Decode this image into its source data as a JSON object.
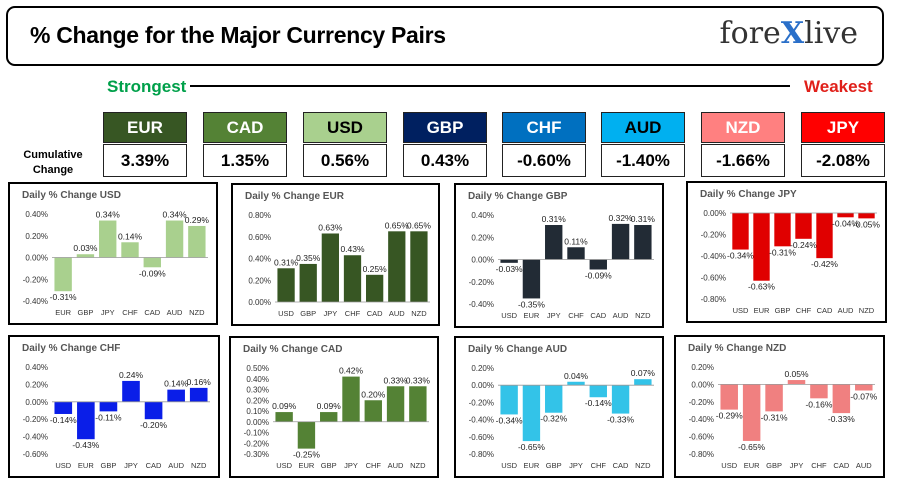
{
  "header": {
    "title": "% Change for the Major Currency Pairs",
    "logo_left": "fore",
    "logo_x": "X",
    "logo_right": "live"
  },
  "strength": {
    "strongest_label": "Strongest",
    "weakest_label": "Weakest",
    "row_label": "Cumulative Change"
  },
  "cumulative": [
    {
      "code": "EUR",
      "value": "3.39%",
      "bg": "#375623",
      "fg": "#ffffff"
    },
    {
      "code": "CAD",
      "value": "1.35%",
      "bg": "#548235",
      "fg": "#ffffff"
    },
    {
      "code": "USD",
      "value": "0.56%",
      "bg": "#a9d08e",
      "fg": "#000000"
    },
    {
      "code": "GBP",
      "value": "0.43%",
      "bg": "#002060",
      "fg": "#ffffff"
    },
    {
      "code": "CHF",
      "value": "-0.60%",
      "bg": "#0070c0",
      "fg": "#ffffff"
    },
    {
      "code": "AUD",
      "value": "-1.40%",
      "bg": "#00b0f0",
      "fg": "#000000"
    },
    {
      "code": "NZD",
      "value": "-1.66%",
      "bg": "#ff8080",
      "fg": "#ffffff"
    },
    {
      "code": "JPY",
      "value": "-2.08%",
      "bg": "#ff0000",
      "fg": "#ffffff"
    }
  ],
  "chart_data": [
    {
      "type": "bar",
      "title": "Daily % Change USD",
      "categories": [
        "EUR",
        "GBP",
        "JPY",
        "CHF",
        "CAD",
        "AUD",
        "NZD"
      ],
      "values": [
        -0.31,
        0.03,
        0.34,
        0.14,
        -0.09,
        0.34,
        0.29
      ],
      "labels": [
        "-0.31%",
        "0.03%",
        "0.34%",
        "0.14%",
        "-0.09%",
        "0.34%",
        "0.29%"
      ],
      "yticks": [
        0.4,
        0.2,
        0,
        -0.2,
        -0.4
      ],
      "ytick_labels": [
        "0.40%",
        "0.20%",
        "0.00%",
        "-0.20%",
        "-0.40%"
      ],
      "ylim": [
        -0.4,
        0.4
      ],
      "color": "#a9d08e"
    },
    {
      "type": "bar",
      "title": "Daily % Change EUR",
      "categories": [
        "USD",
        "GBP",
        "JPY",
        "CHF",
        "CAD",
        "AUD",
        "NZD"
      ],
      "values": [
        0.31,
        0.35,
        0.63,
        0.43,
        0.25,
        0.65,
        0.65
      ],
      "labels": [
        "0.31%",
        "0.35%",
        "0.63%",
        "0.43%",
        "0.25%",
        "0.65%",
        "0.65%"
      ],
      "yticks": [
        0.8,
        0.6,
        0.4,
        0.2,
        0
      ],
      "ytick_labels": [
        "0.80%",
        "0.60%",
        "0.40%",
        "0.20%",
        "0.00%"
      ],
      "ylim": [
        0,
        0.8
      ],
      "color": "#375623"
    },
    {
      "type": "bar",
      "title": "Daily % Change GBP",
      "categories": [
        "USD",
        "EUR",
        "JPY",
        "CHF",
        "CAD",
        "AUD",
        "NZD"
      ],
      "values": [
        -0.03,
        -0.35,
        0.31,
        0.11,
        -0.09,
        0.32,
        0.31
      ],
      "labels": [
        "-0.03%",
        "-0.35%",
        "0.31%",
        "0.11%",
        "-0.09%",
        "0.32%",
        "0.31%"
      ],
      "yticks": [
        0.4,
        0.2,
        0,
        -0.2,
        -0.4
      ],
      "ytick_labels": [
        "0.40%",
        "0.20%",
        "0.00%",
        "-0.20%",
        "-0.40%"
      ],
      "ylim": [
        -0.4,
        0.4
      ],
      "color": "#222b35"
    },
    {
      "type": "bar",
      "title": "Daily % Change JPY",
      "categories": [
        "USD",
        "EUR",
        "GBP",
        "CHF",
        "CAD",
        "AUD",
        "NZD"
      ],
      "values": [
        -0.34,
        -0.63,
        -0.31,
        -0.24,
        -0.42,
        -0.04,
        -0.05
      ],
      "labels": [
        "-0.34%",
        "-0.63%",
        "-0.31%",
        "-0.24%",
        "-0.42%",
        "-0.04%",
        "-0.05%"
      ],
      "yticks": [
        0,
        -0.2,
        -0.4,
        -0.6,
        -0.8
      ],
      "ytick_labels": [
        "0.00%",
        "-0.20%",
        "-0.40%",
        "-0.60%",
        "-0.80%"
      ],
      "ylim": [
        -0.8,
        0
      ],
      "color": "#e00000"
    },
    {
      "type": "bar",
      "title": "Daily % Change CHF",
      "categories": [
        "USD",
        "EUR",
        "GBP",
        "JPY",
        "CAD",
        "AUD",
        "NZD"
      ],
      "values": [
        -0.14,
        -0.43,
        -0.11,
        0.24,
        -0.2,
        0.14,
        0.16
      ],
      "labels": [
        "-0.14%",
        "-0.43%",
        "-0.11%",
        "0.24%",
        "-0.20%",
        "0.14%",
        "0.16%"
      ],
      "yticks": [
        0.4,
        0.2,
        0,
        -0.2,
        -0.4,
        -0.6
      ],
      "ytick_labels": [
        "0.40%",
        "0.20%",
        "0.00%",
        "-0.20%",
        "-0.40%",
        "-0.60%"
      ],
      "ylim": [
        -0.6,
        0.4
      ],
      "color": "#0a1ee8"
    },
    {
      "type": "bar",
      "title": "Daily % Change CAD",
      "categories": [
        "USD",
        "EUR",
        "GBP",
        "JPY",
        "CHF",
        "AUD",
        "NZD"
      ],
      "values": [
        0.09,
        -0.25,
        0.09,
        0.42,
        0.2,
        0.33,
        0.33
      ],
      "labels": [
        "0.09%",
        "-0.25%",
        "0.09%",
        "0.42%",
        "0.20%",
        "0.33%",
        "0.33%"
      ],
      "yticks": [
        0.5,
        0.4,
        0.3,
        0.2,
        0.1,
        0,
        -0.1,
        -0.2,
        -0.3
      ],
      "ytick_labels": [
        "0.50%",
        "0.40%",
        "0.30%",
        "0.20%",
        "0.10%",
        "0.00%",
        "-0.10%",
        "-0.20%",
        "-0.30%"
      ],
      "ylim": [
        -0.3,
        0.5
      ],
      "color": "#548235"
    },
    {
      "type": "bar",
      "title": "Daily % Change AUD",
      "categories": [
        "USD",
        "EUR",
        "GBP",
        "JPY",
        "CHF",
        "CAD",
        "NZD"
      ],
      "values": [
        -0.34,
        -0.65,
        -0.32,
        0.04,
        -0.14,
        -0.33,
        0.07
      ],
      "labels": [
        "-0.34%",
        "-0.65%",
        "-0.32%",
        "0.04%",
        "-0.14%",
        "-0.33%",
        "0.07%"
      ],
      "yticks": [
        0.2,
        0,
        -0.2,
        -0.4,
        -0.6,
        -0.8
      ],
      "ytick_labels": [
        "0.20%",
        "0.00%",
        "-0.20%",
        "-0.40%",
        "-0.60%",
        "-0.80%"
      ],
      "ylim": [
        -0.8,
        0.2
      ],
      "color": "#33c3e8"
    },
    {
      "type": "bar",
      "title": "Daily % Change NZD",
      "categories": [
        "USD",
        "EUR",
        "GBP",
        "JPY",
        "CHF",
        "CAD",
        "AUD"
      ],
      "values": [
        -0.29,
        -0.65,
        -0.31,
        0.05,
        -0.16,
        -0.33,
        -0.07
      ],
      "labels": [
        "-0.29%",
        "-0.65%",
        "-0.31%",
        "0.05%",
        "-0.16%",
        "-0.33%",
        "-0.07%"
      ],
      "yticks": [
        0.2,
        0,
        -0.2,
        -0.4,
        -0.6,
        -0.8
      ],
      "ytick_labels": [
        "0.20%",
        "0.00%",
        "-0.20%",
        "-0.40%",
        "-0.60%",
        "-0.80%"
      ],
      "ylim": [
        -0.8,
        0.2
      ],
      "color": "#f08080"
    }
  ]
}
